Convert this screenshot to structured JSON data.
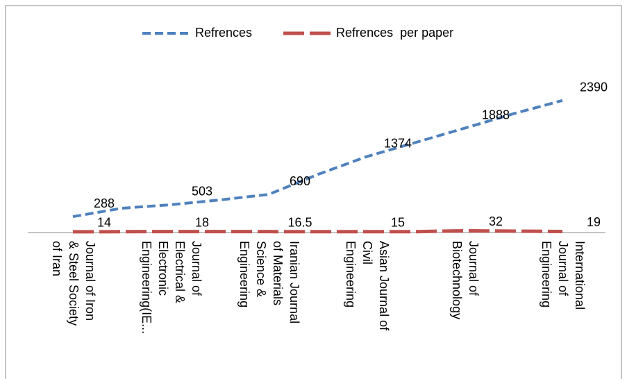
{
  "chart_data": {
    "type": "line",
    "categories": [
      "Journal of Iron & Steel Society of Iran",
      null,
      "Journal of Electrical & Electronic Engineering(IE...",
      null,
      "Iranian Journal of Materials Science & Engineering",
      null,
      "Asian Journal of Civil Engineering",
      null,
      "Journal of Biotechnology",
      null,
      "International Journal of Engineering"
    ],
    "series": [
      {
        "name": "Refrences",
        "color": "#4f81bd",
        "values": [
          288,
          440,
          503,
          590,
          690,
          1050,
          1374,
          1630,
          1888,
          2150,
          2390
        ],
        "value_labels": [
          "288",
          null,
          "503",
          null,
          "690",
          null,
          "1374",
          null,
          "1888",
          null,
          "2390"
        ]
      },
      {
        "name": "Refrences  per paper",
        "color": "#c0504d",
        "values": [
          14,
          15,
          18,
          17,
          16.5,
          16,
          15,
          16,
          32,
          25,
          19
        ],
        "value_labels": [
          "14",
          null,
          "18",
          null,
          "16.5",
          null,
          "15",
          null,
          "32",
          null,
          "19"
        ]
      }
    ],
    "ylim": [
      0,
      2500
    ],
    "legend": "top"
  }
}
